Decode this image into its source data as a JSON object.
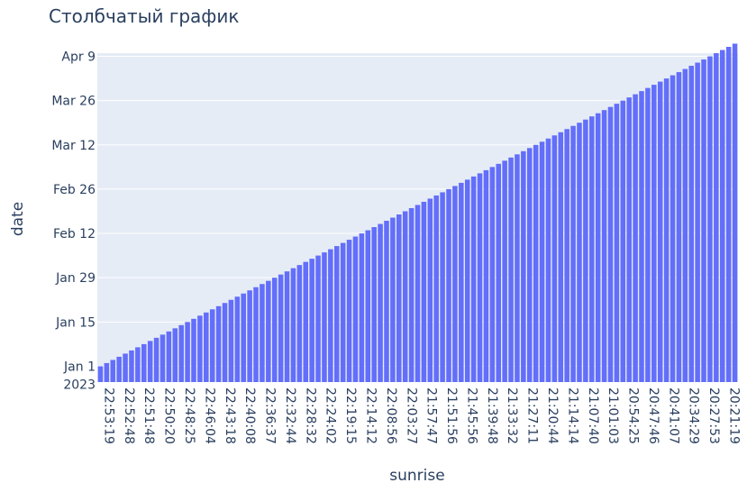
{
  "chart_data": {
    "type": "bar",
    "title": "Столбчатый график",
    "xlabel": "sunrise",
    "ylabel": "date",
    "ylim": [
      "2022-12-27",
      "2023-04-10"
    ],
    "y_tick_labels": [
      "Jan 1\n2023",
      "Jan 15",
      "Jan 29",
      "Feb 12",
      "Feb 26",
      "Mar 12",
      "Mar 26",
      "Apr 9"
    ],
    "y_tick_dates": [
      "2023-01-01",
      "2023-01-15",
      "2023-01-29",
      "2023-02-12",
      "2023-02-26",
      "2023-03-12",
      "2023-03-26",
      "2023-04-09"
    ],
    "x_tick_labels": [
      "22:53:19",
      "22:52:48",
      "22:51:48",
      "22:50:20",
      "22:48:25",
      "22:46:04",
      "22:43:18",
      "22:40:08",
      "22:36:37",
      "22:32:44",
      "22:28:32",
      "22:24:02",
      "22:19:15",
      "22:14:12",
      "22:08:56",
      "22:03:27",
      "21:57:47",
      "21:51:56",
      "21:45:56",
      "21:39:48",
      "21:33:32",
      "21:27:11",
      "21:20:44",
      "21:14:14",
      "21:07:40",
      "21:01:03",
      "20:54:25",
      "20:47:46",
      "20:41:07",
      "20:34:29",
      "20:27:53",
      "20:21:19"
    ],
    "bar_start_date": "2023-01-01",
    "bar_end_date": "2023-04-13",
    "bar_count": 103,
    "grid": true,
    "colors": {
      "bar": "#636efa",
      "plot_bg": "#e5ecf6",
      "grid": "#ffffff",
      "text": "#2a3f5f"
    }
  }
}
